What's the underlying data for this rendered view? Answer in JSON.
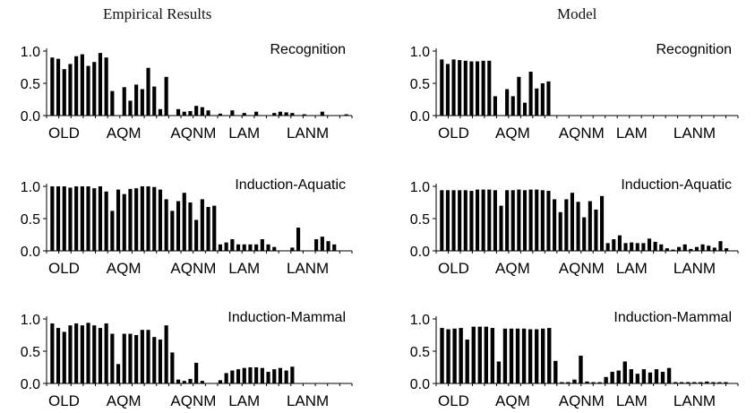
{
  "columns": [
    {
      "title": "Empirical Results"
    },
    {
      "title": "Model"
    }
  ],
  "chart_data": [
    {
      "type": "bar",
      "column": 0,
      "row": 0,
      "panel_label": "Recognition",
      "ylim": [
        0,
        1
      ],
      "yticks": [
        "0.0",
        "0.5",
        "1.0"
      ],
      "groups": [
        "OLD",
        "AQM",
        "AQNM",
        "LAM",
        "LANM"
      ],
      "values": [
        0.9,
        0.88,
        0.72,
        0.8,
        0.92,
        0.95,
        0.77,
        0.83,
        0.97,
        0.9,
        0.38,
        0,
        0.44,
        0.23,
        0.48,
        0.41,
        0.74,
        0.45,
        0.1,
        0.6,
        0,
        0.1,
        0.06,
        0.07,
        0.15,
        0.13,
        0.08,
        0.0,
        0.03,
        0.0,
        0.08,
        0.0,
        0.04,
        0.0,
        0.06,
        0.0,
        0.0,
        0.04,
        0.06,
        0.05,
        0.04,
        0.0,
        0.02,
        0.0,
        0.0,
        0.06,
        0.0,
        0.0,
        0.0,
        0.02
      ]
    },
    {
      "type": "bar",
      "column": 1,
      "row": 0,
      "panel_label": "Recognition",
      "ylim": [
        0,
        1
      ],
      "yticks": [
        "0.0",
        "0.5",
        "1.0"
      ],
      "groups": [
        "OLD",
        "AQM",
        "AQNM",
        "LAM",
        "LANM"
      ],
      "values": [
        0.87,
        0.8,
        0.87,
        0.86,
        0.85,
        0.84,
        0.84,
        0.85,
        0.85,
        0.3,
        0,
        0.41,
        0.3,
        0.6,
        0.2,
        0.68,
        0.42,
        0.5,
        0.53,
        0,
        0,
        0,
        0,
        0,
        0,
        0,
        0,
        0,
        0,
        0,
        0,
        0,
        0,
        0,
        0,
        0,
        0,
        0,
        0,
        0,
        0,
        0,
        0,
        0,
        0,
        0,
        0,
        0,
        0,
        0
      ]
    },
    {
      "type": "bar",
      "column": 0,
      "row": 1,
      "panel_label": "Induction-Aquatic",
      "ylim": [
        0,
        1
      ],
      "yticks": [
        "0.0",
        "0.5",
        "1.0"
      ],
      "groups": [
        "OLD",
        "AQM",
        "AQNM",
        "LAM",
        "LANM"
      ],
      "values": [
        1.0,
        1.0,
        1.0,
        0.98,
        1.0,
        1.0,
        1.0,
        0.97,
        1.0,
        0.92,
        0.62,
        0.95,
        0.88,
        0.96,
        0.97,
        1.0,
        1.0,
        0.99,
        0.95,
        0.8,
        0.62,
        0.77,
        0.9,
        0.75,
        0.48,
        0.8,
        0.68,
        0.7,
        0.1,
        0.13,
        0.18,
        0.1,
        0.1,
        0.1,
        0.1,
        0.18,
        0.1,
        0.06,
        0.0,
        0.0,
        0.05,
        0.36,
        0.0,
        0.0,
        0.18,
        0.22,
        0.15,
        0.1,
        0.0,
        0.0
      ]
    },
    {
      "type": "bar",
      "column": 1,
      "row": 1,
      "panel_label": "Induction-Aquatic",
      "ylim": [
        0,
        1
      ],
      "yticks": [
        "0.0",
        "0.5",
        "1.0"
      ],
      "groups": [
        "OLD",
        "AQM",
        "AQNM",
        "LAM",
        "LANM"
      ],
      "values": [
        0.94,
        0.94,
        0.94,
        0.94,
        0.94,
        0.93,
        0.95,
        0.95,
        0.95,
        0.94,
        0.7,
        0.94,
        0.94,
        0.95,
        0.94,
        0.95,
        0.95,
        0.94,
        0.93,
        0.8,
        0.6,
        0.8,
        0.9,
        0.76,
        0.52,
        0.77,
        0.64,
        0.85,
        0.12,
        0.18,
        0.24,
        0.12,
        0.13,
        0.12,
        0.12,
        0.19,
        0.14,
        0.1,
        0.04,
        0.02,
        0.06,
        0.1,
        0.03,
        0.06,
        0.1,
        0.08,
        0.05,
        0.15,
        0.04,
        0.0
      ]
    },
    {
      "type": "bar",
      "column": 0,
      "row": 2,
      "panel_label": "Induction-Mammal",
      "ylim": [
        0,
        1
      ],
      "yticks": [
        "0.0",
        "0.5",
        "1.0"
      ],
      "groups": [
        "OLD",
        "AQM",
        "AQNM",
        "LAM",
        "LANM"
      ],
      "values": [
        0.93,
        0.86,
        0.8,
        0.9,
        0.93,
        0.9,
        0.94,
        0.9,
        0.86,
        0.93,
        0.77,
        0.3,
        0.77,
        0.77,
        0.75,
        0.83,
        0.83,
        0.72,
        0.68,
        0.9,
        0.48,
        0.06,
        0.04,
        0.07,
        0.32,
        0.04,
        0.0,
        0.0,
        0.05,
        0.16,
        0.2,
        0.22,
        0.24,
        0.25,
        0.25,
        0.24,
        0.18,
        0.22,
        0.24,
        0.2,
        0.26,
        0,
        0,
        0,
        0,
        0,
        0,
        0,
        0,
        0
      ]
    },
    {
      "type": "bar",
      "column": 1,
      "row": 2,
      "panel_label": "Induction-Mammal",
      "ylim": [
        0,
        1
      ],
      "yticks": [
        "0.0",
        "0.5",
        "1.0"
      ],
      "groups": [
        "OLD",
        "AQM",
        "AQNM",
        "LAM",
        "LANM"
      ],
      "values": [
        0.86,
        0.84,
        0.85,
        0.86,
        0.68,
        0.88,
        0.88,
        0.88,
        0.86,
        0.34,
        0.85,
        0.85,
        0.85,
        0.85,
        0.84,
        0.84,
        0.85,
        0.86,
        0.35,
        0.02,
        0.02,
        0.06,
        0.43,
        0.03,
        0.02,
        0.02,
        0.1,
        0.18,
        0.2,
        0.34,
        0.22,
        0.15,
        0.22,
        0.17,
        0.22,
        0.18,
        0.24,
        0.02,
        0.02,
        0.02,
        0.02,
        0.02,
        0.03,
        0.02,
        0.02,
        0.02,
        0.0
      ]
    }
  ]
}
